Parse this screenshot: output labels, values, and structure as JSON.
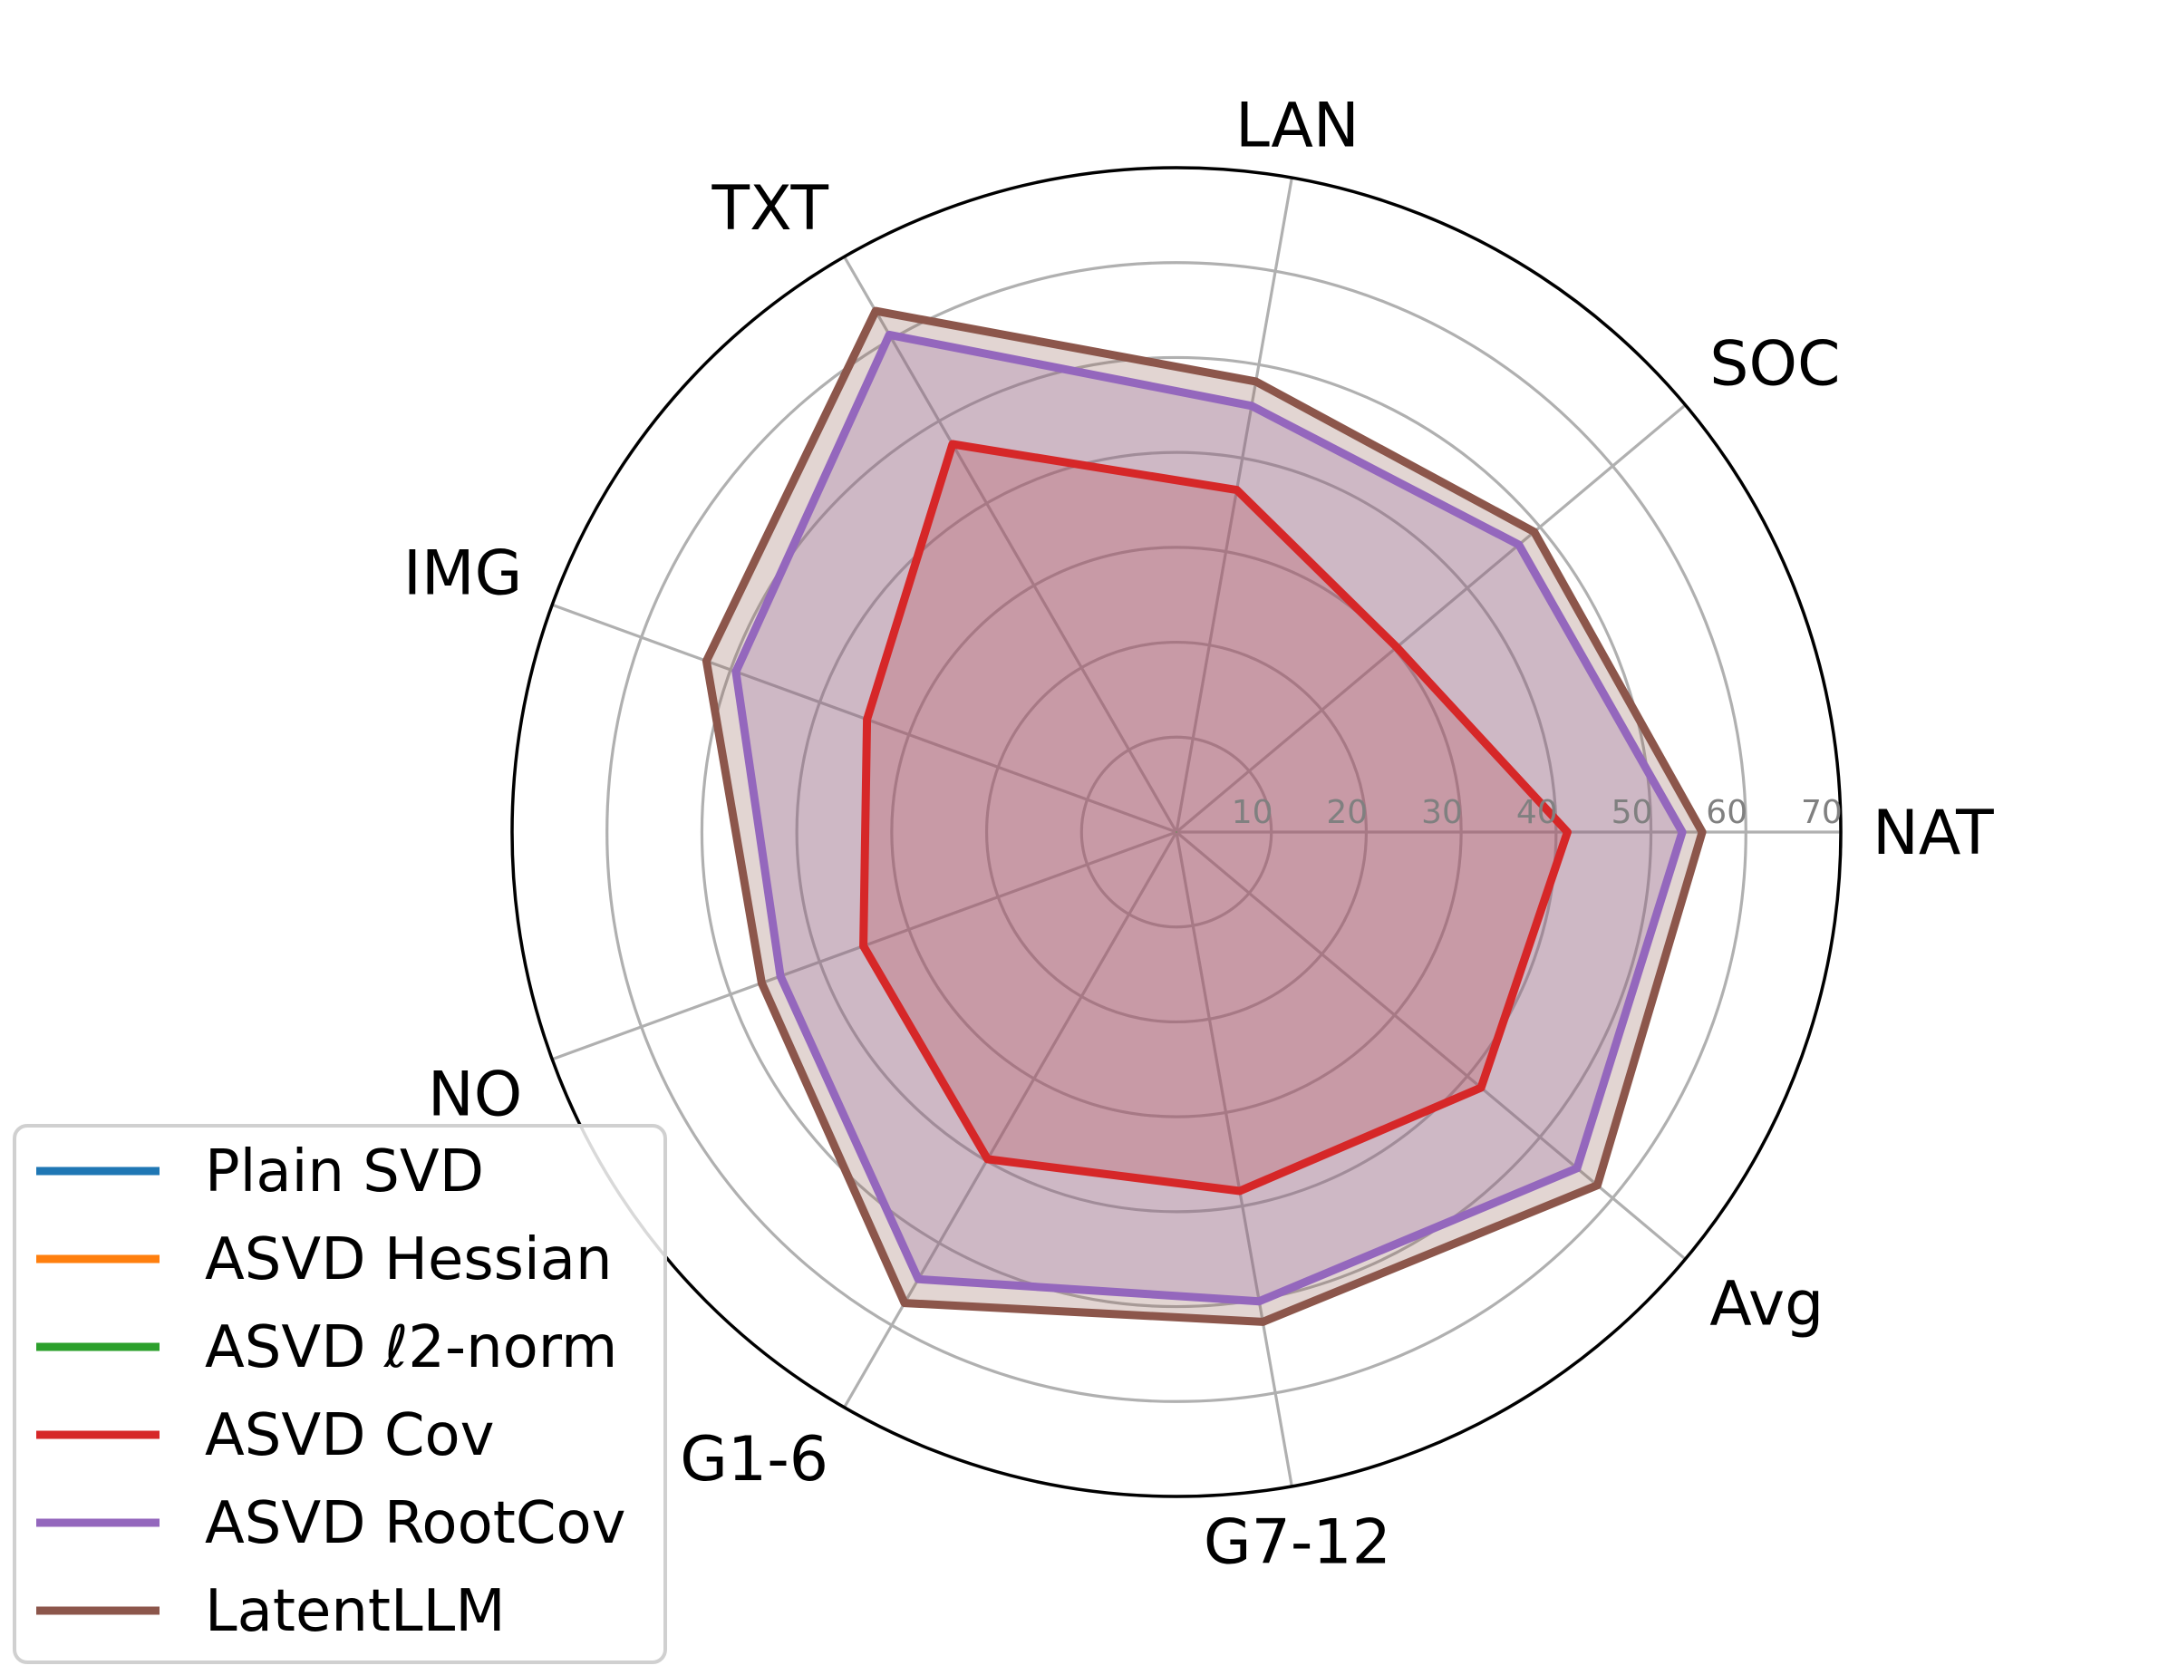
{
  "chart_data": {
    "type": "radar",
    "axes": [
      "NAT",
      "SOC",
      "LAN",
      "TXT",
      "IMG",
      "NO",
      "G1-6",
      "G7-12",
      "Avg"
    ],
    "rlim": [
      0,
      70
    ],
    "rticks": [
      "10",
      "20",
      "30",
      "40",
      "50",
      "60",
      "70"
    ],
    "grid": true,
    "legend_position": "lower-left",
    "series": [
      {
        "name": "Plain SVD",
        "color": "#1f77b4",
        "values": [
          0,
          0,
          0,
          0,
          0,
          0,
          0,
          0,
          0
        ]
      },
      {
        "name": "ASVD Hessian",
        "color": "#ff7f0e",
        "values": [
          0,
          0,
          0,
          0,
          0,
          0,
          0,
          0,
          0
        ]
      },
      {
        "name": "ASVD ℓ2-norm",
        "color": "#2ca02c",
        "values": [
          0,
          0,
          0,
          0,
          0,
          0,
          0,
          0,
          0
        ]
      },
      {
        "name": "ASVD Cov",
        "color": "#d62728",
        "values": [
          41.2,
          30.3,
          36.6,
          47.2,
          34.7,
          35.1,
          39.8,
          38.4,
          41.9
        ]
      },
      {
        "name": "ASVD RootCov",
        "color": "#9467bd",
        "values": [
          53.3,
          47.1,
          45.6,
          60.5,
          49.4,
          44.4,
          54.4,
          50.2,
          55.1
        ]
      },
      {
        "name": "LatentLLM",
        "color": "#8c564b",
        "values": [
          55.4,
          49.2,
          48.2,
          63.4,
          52.7,
          46.5,
          57.3,
          52.4,
          57.9
        ]
      }
    ]
  }
}
